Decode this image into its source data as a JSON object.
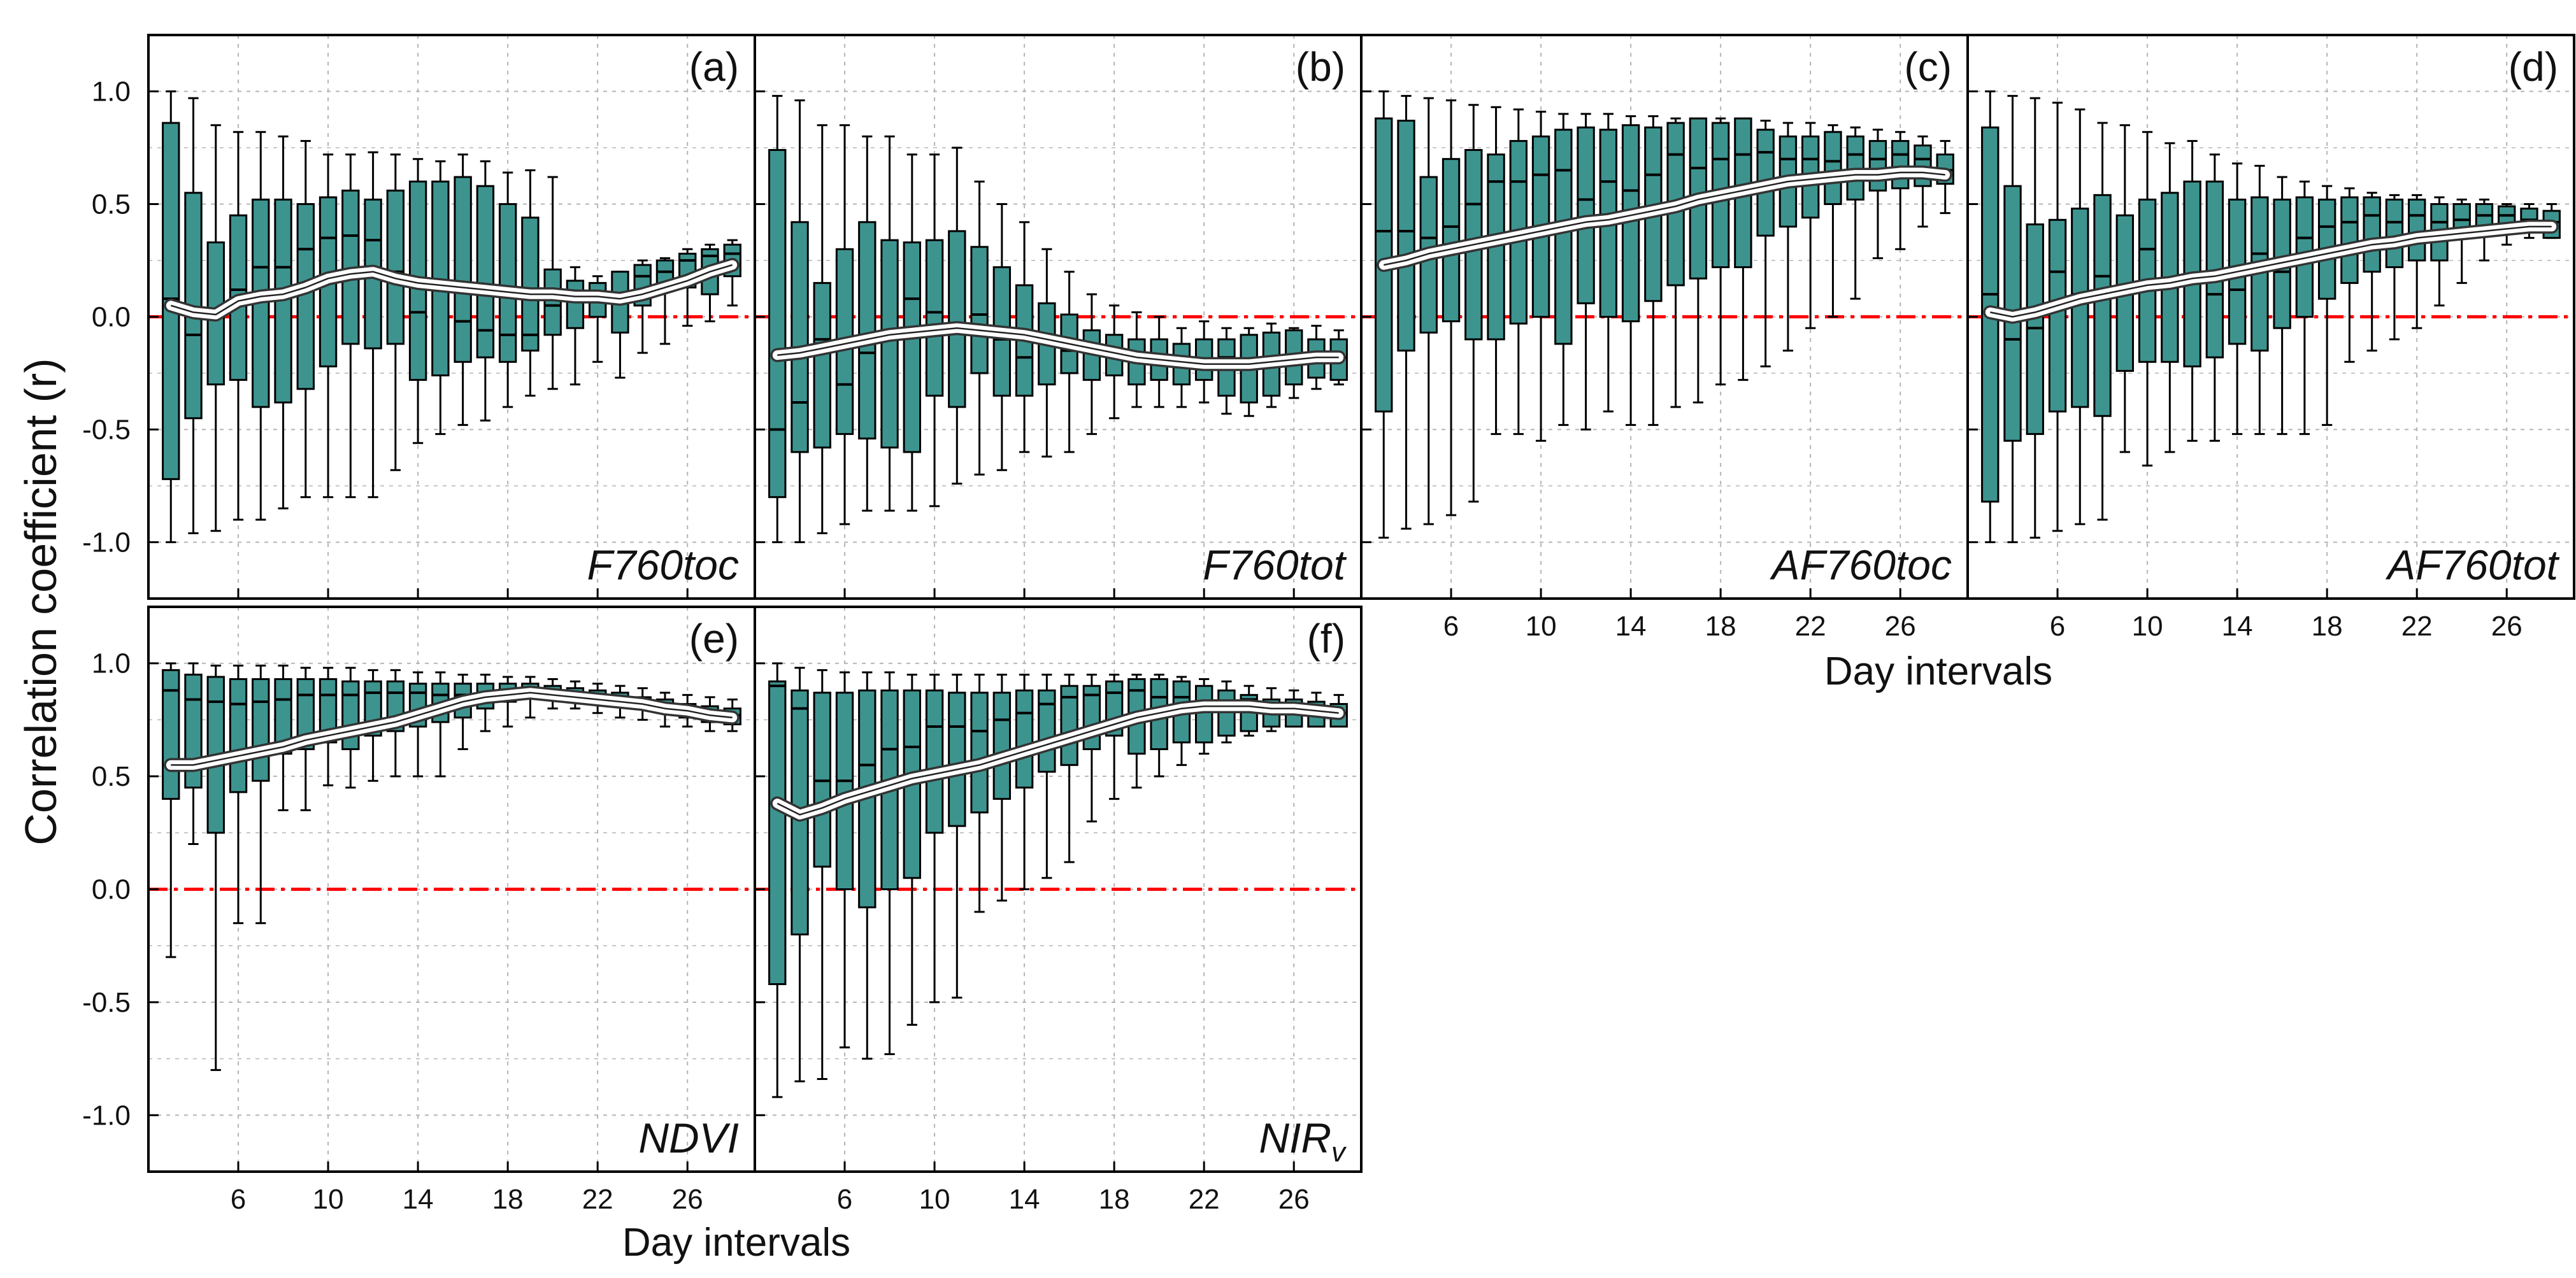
{
  "figure": {
    "ylabel": "Correlation coefficient (r)",
    "xlabel": "Day intervals",
    "colors": {
      "box_fill": "#3d948f",
      "box_edge": "#000000",
      "mean_band": "#ffffff",
      "zero_line": "#ff0000",
      "grid": "#b5b5b5"
    }
  },
  "chart_data": [
    {
      "type": "box",
      "panel": "a",
      "letter": "(a)",
      "variable": "F760toc",
      "variable_sub": "",
      "x": [
        3,
        4,
        5,
        6,
        7,
        8,
        9,
        10,
        11,
        12,
        13,
        14,
        15,
        16,
        17,
        18,
        19,
        20,
        21,
        22,
        23,
        24,
        25,
        26,
        27,
        28
      ],
      "q1": [
        -0.72,
        -0.45,
        -0.3,
        -0.28,
        -0.4,
        -0.38,
        -0.32,
        -0.22,
        -0.12,
        -0.14,
        -0.12,
        -0.28,
        -0.26,
        -0.2,
        -0.18,
        -0.2,
        -0.15,
        -0.08,
        -0.05,
        0.0,
        -0.07,
        0.05,
        0.15,
        0.13,
        0.1,
        0.18
      ],
      "median": [
        0.08,
        -0.08,
        0.0,
        0.12,
        0.22,
        0.22,
        0.3,
        0.35,
        0.36,
        0.34,
        0.2,
        0.02,
        0.15,
        -0.02,
        -0.06,
        -0.08,
        -0.08,
        0.05,
        0.1,
        0.1,
        0.1,
        0.18,
        0.2,
        0.25,
        0.27,
        0.28
      ],
      "q3": [
        0.86,
        0.55,
        0.33,
        0.45,
        0.52,
        0.52,
        0.5,
        0.53,
        0.56,
        0.52,
        0.56,
        0.6,
        0.6,
        0.62,
        0.58,
        0.5,
        0.44,
        0.21,
        0.16,
        0.15,
        0.2,
        0.23,
        0.25,
        0.28,
        0.3,
        0.32
      ],
      "whisker_low": [
        -1.0,
        -0.96,
        -0.95,
        -0.9,
        -0.9,
        -0.85,
        -0.8,
        -0.8,
        -0.8,
        -0.8,
        -0.68,
        -0.56,
        -0.52,
        -0.48,
        -0.46,
        -0.4,
        -0.35,
        -0.32,
        -0.3,
        -0.2,
        -0.27,
        -0.16,
        -0.12,
        -0.04,
        -0.02,
        0.05
      ],
      "whisker_high": [
        1.0,
        0.97,
        0.85,
        0.82,
        0.82,
        0.8,
        0.78,
        0.72,
        0.72,
        0.73,
        0.72,
        0.7,
        0.69,
        0.72,
        0.69,
        0.64,
        0.65,
        0.62,
        0.22,
        0.18,
        0.2,
        0.25,
        0.26,
        0.3,
        0.32,
        0.34
      ],
      "mean": [
        0.05,
        0.02,
        0.01,
        0.07,
        0.09,
        0.1,
        0.13,
        0.17,
        0.19,
        0.2,
        0.17,
        0.15,
        0.14,
        0.13,
        0.12,
        0.11,
        0.1,
        0.1,
        0.09,
        0.09,
        0.08,
        0.1,
        0.13,
        0.16,
        0.2,
        0.23
      ],
      "xlabel": "",
      "ylim": [
        -1.25,
        1.25
      ]
    },
    {
      "type": "box",
      "panel": "b",
      "letter": "(b)",
      "variable": "F760tot",
      "variable_sub": "",
      "x": [
        3,
        4,
        5,
        6,
        7,
        8,
        9,
        10,
        11,
        12,
        13,
        14,
        15,
        16,
        17,
        18,
        19,
        20,
        21,
        22,
        23,
        24,
        25,
        26,
        27,
        28
      ],
      "q1": [
        -0.8,
        -0.6,
        -0.58,
        -0.52,
        -0.54,
        -0.58,
        -0.6,
        -0.35,
        -0.4,
        -0.25,
        -0.35,
        -0.35,
        -0.3,
        -0.25,
        -0.28,
        -0.26,
        -0.3,
        -0.28,
        -0.3,
        -0.28,
        -0.35,
        -0.38,
        -0.35,
        -0.3,
        -0.27,
        -0.28
      ],
      "median": [
        -0.5,
        -0.38,
        -0.1,
        -0.3,
        -0.16,
        -0.08,
        0.08,
        0.02,
        -0.05,
        0.01,
        -0.1,
        -0.18,
        -0.1,
        -0.15,
        -0.14,
        -0.15,
        -0.2,
        -0.2,
        -0.2,
        -0.22,
        -0.18,
        -0.2,
        -0.22,
        -0.2,
        -0.16,
        -0.18
      ],
      "q3": [
        0.74,
        0.42,
        0.15,
        0.3,
        0.42,
        0.34,
        0.33,
        0.34,
        0.38,
        0.31,
        0.22,
        0.14,
        0.06,
        0.01,
        -0.06,
        -0.08,
        -0.1,
        -0.1,
        -0.12,
        -0.1,
        -0.1,
        -0.08,
        -0.07,
        -0.06,
        -0.1,
        -0.1
      ],
      "whisker_low": [
        -1.0,
        -1.0,
        -0.96,
        -0.92,
        -0.86,
        -0.86,
        -0.86,
        -0.84,
        -0.74,
        -0.7,
        -0.68,
        -0.6,
        -0.62,
        -0.6,
        -0.52,
        -0.45,
        -0.4,
        -0.4,
        -0.4,
        -0.38,
        -0.43,
        -0.44,
        -0.4,
        -0.36,
        -0.32,
        -0.3
      ],
      "whisker_high": [
        0.98,
        0.96,
        0.85,
        0.85,
        0.8,
        0.8,
        0.72,
        0.72,
        0.75,
        0.6,
        0.5,
        0.42,
        0.3,
        0.2,
        0.1,
        0.05,
        0.02,
        0.0,
        -0.05,
        -0.02,
        -0.05,
        -0.05,
        -0.03,
        -0.05,
        -0.04,
        -0.06
      ],
      "mean": [
        -0.17,
        -0.16,
        -0.14,
        -0.12,
        -0.1,
        -0.08,
        -0.07,
        -0.06,
        -0.05,
        -0.06,
        -0.07,
        -0.08,
        -0.1,
        -0.12,
        -0.14,
        -0.16,
        -0.18,
        -0.19,
        -0.2,
        -0.21,
        -0.21,
        -0.21,
        -0.2,
        -0.19,
        -0.18,
        -0.18
      ],
      "xlabel": "",
      "ylim": [
        -1.25,
        1.25
      ]
    },
    {
      "type": "box",
      "panel": "c",
      "letter": "(c)",
      "variable": "AF760toc",
      "variable_sub": "",
      "x": [
        3,
        4,
        5,
        6,
        7,
        8,
        9,
        10,
        11,
        12,
        13,
        14,
        15,
        16,
        17,
        18,
        19,
        20,
        21,
        22,
        23,
        24,
        25,
        26,
        27,
        28
      ],
      "q1": [
        -0.42,
        -0.15,
        -0.07,
        -0.02,
        -0.1,
        -0.1,
        -0.03,
        0.0,
        -0.12,
        0.06,
        0.0,
        -0.02,
        0.07,
        0.14,
        0.17,
        0.22,
        0.22,
        0.36,
        0.4,
        0.44,
        0.5,
        0.52,
        0.56,
        0.57,
        0.58,
        0.59
      ],
      "median": [
        0.38,
        0.38,
        0.35,
        0.4,
        0.5,
        0.6,
        0.6,
        0.63,
        0.65,
        0.52,
        0.6,
        0.56,
        0.63,
        0.72,
        0.66,
        0.7,
        0.72,
        0.73,
        0.7,
        0.7,
        0.69,
        0.72,
        0.7,
        0.72,
        0.7,
        0.65
      ],
      "q3": [
        0.88,
        0.87,
        0.62,
        0.7,
        0.74,
        0.72,
        0.78,
        0.8,
        0.83,
        0.84,
        0.83,
        0.85,
        0.84,
        0.86,
        0.88,
        0.86,
        0.88,
        0.83,
        0.8,
        0.8,
        0.82,
        0.8,
        0.78,
        0.78,
        0.76,
        0.72
      ],
      "whisker_low": [
        -0.98,
        -0.94,
        -0.92,
        -0.88,
        -0.82,
        -0.52,
        -0.52,
        -0.55,
        -0.48,
        -0.5,
        -0.42,
        -0.48,
        -0.48,
        -0.4,
        -0.38,
        -0.3,
        -0.28,
        -0.22,
        -0.15,
        -0.05,
        0.0,
        0.08,
        0.26,
        0.3,
        0.4,
        0.46
      ],
      "whisker_high": [
        1.0,
        0.98,
        0.97,
        0.96,
        0.94,
        0.93,
        0.92,
        0.91,
        0.9,
        0.9,
        0.9,
        0.89,
        0.89,
        0.88,
        0.88,
        0.88,
        0.87,
        0.87,
        0.86,
        0.86,
        0.85,
        0.84,
        0.83,
        0.82,
        0.8,
        0.78
      ],
      "mean": [
        0.23,
        0.25,
        0.28,
        0.3,
        0.32,
        0.34,
        0.36,
        0.38,
        0.4,
        0.42,
        0.43,
        0.45,
        0.47,
        0.49,
        0.52,
        0.54,
        0.56,
        0.58,
        0.6,
        0.61,
        0.62,
        0.63,
        0.63,
        0.64,
        0.64,
        0.63
      ],
      "xlabel": "Day intervals",
      "ylim": [
        -1.25,
        1.25
      ]
    },
    {
      "type": "box",
      "panel": "d",
      "letter": "(d)",
      "variable": "AF760tot",
      "variable_sub": "",
      "x": [
        3,
        4,
        5,
        6,
        7,
        8,
        9,
        10,
        11,
        12,
        13,
        14,
        15,
        16,
        17,
        18,
        19,
        20,
        21,
        22,
        23,
        24,
        25,
        26,
        27,
        28
      ],
      "q1": [
        -0.82,
        -0.55,
        -0.52,
        -0.42,
        -0.4,
        -0.44,
        -0.24,
        -0.2,
        -0.2,
        -0.22,
        -0.18,
        -0.12,
        -0.15,
        -0.05,
        0.0,
        0.08,
        0.15,
        0.2,
        0.22,
        0.25,
        0.25,
        0.35,
        0.38,
        0.38,
        0.38,
        0.35
      ],
      "median": [
        0.1,
        -0.1,
        -0.05,
        0.2,
        0.1,
        0.18,
        0.1,
        0.3,
        0.13,
        0.16,
        0.1,
        0.12,
        0.28,
        0.2,
        0.35,
        0.4,
        0.42,
        0.45,
        0.42,
        0.45,
        0.42,
        0.43,
        0.45,
        0.45,
        0.43,
        0.42
      ],
      "q3": [
        0.84,
        0.58,
        0.41,
        0.43,
        0.48,
        0.54,
        0.45,
        0.52,
        0.55,
        0.6,
        0.6,
        0.52,
        0.53,
        0.52,
        0.53,
        0.52,
        0.53,
        0.53,
        0.52,
        0.52,
        0.5,
        0.5,
        0.5,
        0.49,
        0.48,
        0.47
      ],
      "whisker_low": [
        -1.0,
        -1.0,
        -0.98,
        -0.95,
        -0.92,
        -0.9,
        -0.6,
        -0.66,
        -0.6,
        -0.55,
        -0.55,
        -0.52,
        -0.52,
        -0.52,
        -0.52,
        -0.48,
        -0.2,
        -0.15,
        -0.1,
        -0.05,
        0.05,
        0.15,
        0.25,
        0.32,
        0.35,
        0.35
      ],
      "whisker_high": [
        1.0,
        0.98,
        0.97,
        0.95,
        0.92,
        0.86,
        0.85,
        0.82,
        0.77,
        0.78,
        0.72,
        0.68,
        0.67,
        0.62,
        0.6,
        0.58,
        0.57,
        0.55,
        0.54,
        0.54,
        0.53,
        0.52,
        0.52,
        0.5,
        0.5,
        0.5
      ],
      "mean": [
        0.02,
        0.0,
        0.02,
        0.05,
        0.08,
        0.1,
        0.12,
        0.14,
        0.15,
        0.17,
        0.18,
        0.2,
        0.22,
        0.24,
        0.26,
        0.28,
        0.3,
        0.32,
        0.33,
        0.35,
        0.36,
        0.37,
        0.38,
        0.39,
        0.4,
        0.4
      ],
      "xlabel": "Day intervals",
      "ylim": [
        -1.25,
        1.25
      ]
    },
    {
      "type": "box",
      "panel": "e",
      "letter": "(e)",
      "variable": "NDVI",
      "variable_sub": "",
      "x": [
        3,
        4,
        5,
        6,
        7,
        8,
        9,
        10,
        11,
        12,
        13,
        14,
        15,
        16,
        17,
        18,
        19,
        20,
        21,
        22,
        23,
        24,
        25,
        26,
        27,
        28
      ],
      "q1": [
        0.4,
        0.45,
        0.25,
        0.43,
        0.48,
        0.6,
        0.62,
        0.65,
        0.62,
        0.68,
        0.7,
        0.72,
        0.74,
        0.76,
        0.8,
        0.83,
        0.85,
        0.86,
        0.85,
        0.83,
        0.82,
        0.8,
        0.78,
        0.76,
        0.74,
        0.73
      ],
      "median": [
        0.88,
        0.84,
        0.83,
        0.82,
        0.83,
        0.84,
        0.86,
        0.86,
        0.86,
        0.87,
        0.87,
        0.87,
        0.86,
        0.86,
        0.87,
        0.88,
        0.89,
        0.88,
        0.87,
        0.86,
        0.84,
        0.83,
        0.82,
        0.8,
        0.78,
        0.77
      ],
      "q3": [
        0.97,
        0.95,
        0.94,
        0.93,
        0.93,
        0.93,
        0.93,
        0.93,
        0.92,
        0.92,
        0.92,
        0.91,
        0.91,
        0.91,
        0.91,
        0.91,
        0.91,
        0.9,
        0.89,
        0.88,
        0.87,
        0.85,
        0.84,
        0.82,
        0.81,
        0.8
      ],
      "whisker_low": [
        -0.3,
        0.2,
        -0.8,
        -0.15,
        -0.15,
        0.35,
        0.35,
        0.46,
        0.45,
        0.48,
        0.5,
        0.5,
        0.5,
        0.62,
        0.7,
        0.72,
        0.76,
        0.8,
        0.8,
        0.78,
        0.76,
        0.75,
        0.72,
        0.72,
        0.7,
        0.7
      ],
      "whisker_high": [
        1.0,
        1.0,
        0.99,
        0.99,
        0.99,
        0.99,
        0.98,
        0.98,
        0.98,
        0.97,
        0.97,
        0.96,
        0.96,
        0.95,
        0.95,
        0.94,
        0.94,
        0.93,
        0.92,
        0.91,
        0.9,
        0.89,
        0.87,
        0.86,
        0.85,
        0.84
      ],
      "mean": [
        0.55,
        0.55,
        0.57,
        0.59,
        0.61,
        0.63,
        0.66,
        0.68,
        0.7,
        0.72,
        0.74,
        0.77,
        0.8,
        0.83,
        0.85,
        0.86,
        0.87,
        0.86,
        0.85,
        0.84,
        0.83,
        0.82,
        0.8,
        0.79,
        0.77,
        0.76
      ],
      "xlabel": "Day intervals",
      "ylim": [
        -1.25,
        1.25
      ]
    },
    {
      "type": "box",
      "panel": "f",
      "letter": "(f)",
      "variable": "NIR",
      "variable_sub": "v",
      "x": [
        3,
        4,
        5,
        6,
        7,
        8,
        9,
        10,
        11,
        12,
        13,
        14,
        15,
        16,
        17,
        18,
        19,
        20,
        21,
        22,
        23,
        24,
        25,
        26,
        27,
        28
      ],
      "q1": [
        -0.42,
        -0.2,
        0.1,
        0.0,
        -0.08,
        0.0,
        0.05,
        0.25,
        0.28,
        0.34,
        0.4,
        0.45,
        0.52,
        0.55,
        0.62,
        0.68,
        0.6,
        0.62,
        0.65,
        0.65,
        0.68,
        0.7,
        0.72,
        0.72,
        0.72,
        0.72
      ],
      "median": [
        0.9,
        0.8,
        0.48,
        0.48,
        0.55,
        0.62,
        0.63,
        0.72,
        0.72,
        0.7,
        0.75,
        0.78,
        0.82,
        0.85,
        0.86,
        0.87,
        0.88,
        0.85,
        0.85,
        0.82,
        0.82,
        0.84,
        0.8,
        0.8,
        0.78,
        0.78
      ],
      "q3": [
        0.92,
        0.88,
        0.87,
        0.87,
        0.88,
        0.88,
        0.88,
        0.88,
        0.87,
        0.87,
        0.87,
        0.88,
        0.88,
        0.9,
        0.9,
        0.92,
        0.93,
        0.93,
        0.92,
        0.9,
        0.88,
        0.86,
        0.84,
        0.84,
        0.83,
        0.82
      ],
      "whisker_low": [
        -0.92,
        -0.85,
        -0.84,
        -0.7,
        -0.75,
        -0.73,
        -0.6,
        -0.5,
        -0.48,
        -0.1,
        -0.05,
        0.0,
        0.05,
        0.12,
        0.3,
        0.4,
        0.45,
        0.5,
        0.55,
        0.6,
        0.65,
        0.68,
        0.7,
        0.72,
        0.72,
        0.72
      ],
      "whisker_high": [
        1.0,
        0.98,
        0.97,
        0.96,
        0.96,
        0.96,
        0.95,
        0.95,
        0.95,
        0.95,
        0.95,
        0.95,
        0.95,
        0.95,
        0.95,
        0.95,
        0.95,
        0.95,
        0.94,
        0.93,
        0.92,
        0.9,
        0.89,
        0.88,
        0.87,
        0.86
      ],
      "mean": [
        0.38,
        0.33,
        0.36,
        0.4,
        0.43,
        0.46,
        0.49,
        0.51,
        0.53,
        0.55,
        0.58,
        0.61,
        0.64,
        0.67,
        0.7,
        0.73,
        0.76,
        0.78,
        0.8,
        0.81,
        0.81,
        0.81,
        0.8,
        0.8,
        0.79,
        0.78
      ],
      "xlabel": "Day intervals",
      "ylim": [
        -1.25,
        1.25
      ]
    }
  ],
  "axes": {
    "yticks": [
      1.0,
      0.5,
      0.0,
      -0.5,
      -1.0
    ],
    "ytick_labels": [
      "1.0",
      "0.5",
      "0.0",
      "-0.5",
      "-1.0"
    ],
    "xticks": [
      6,
      10,
      14,
      18,
      22,
      26
    ],
    "xtick_labels": [
      "6",
      "10",
      "14",
      "18",
      "22",
      "26"
    ],
    "xlim": [
      2,
      29
    ]
  }
}
